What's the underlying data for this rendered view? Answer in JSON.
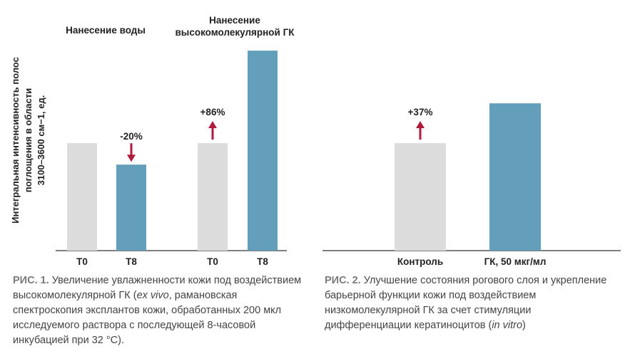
{
  "chart_data": [
    {
      "type": "bar",
      "ylabel": "Интегральная интенсивность полос поглощения в области 3100–3600 см−1, ед.",
      "ylabel_lines": [
        "Интегральная интенсивность полос",
        "поглощения в области",
        "3100–3600 см−1, ед."
      ],
      "groups": [
        {
          "title": "Нанесение воды",
          "title_lines": [
            "Нанесение воды"
          ],
          "categories": [
            "T0",
            "T8"
          ],
          "values": [
            100,
            80
          ],
          "change_label": "-20%",
          "change_direction": "down"
        },
        {
          "title": "Нанесение высокомолекулярной ГК",
          "title_lines": [
            "Нанесение",
            "высокомолекулярной ГК"
          ],
          "categories": [
            "T0",
            "T8"
          ],
          "values": [
            100,
            186
          ],
          "change_label": "+86%",
          "change_direction": "up"
        }
      ],
      "ylim": [
        0,
        200
      ],
      "grid": false
    },
    {
      "type": "bar",
      "categories": [
        "Контроль",
        "ГК, 50 мкг/мл"
      ],
      "values": [
        100,
        137
      ],
      "change_label": "+37%",
      "change_direction": "up",
      "ylim": [
        0,
        200
      ],
      "grid": false
    }
  ],
  "colors": {
    "baseline_bar": "#dcdcdc",
    "treatment_bar": "#639fba",
    "arrow": "#b01b3c",
    "axis": "#333333"
  },
  "captions": [
    {
      "label": "РИС. 1.",
      "text_before": "Увеличение увлажненности кожи под воздействием высокомолекулярной ГК (",
      "italic": "ex vivo",
      "text_after": ", рамановская спектроскопия эксплантов кожи, обработанных 200 мкл исследуемого раствора с последующей 8-часовой инкубацией при 32 °C)."
    },
    {
      "label": "РИС. 2.",
      "text_before": "Улучшение состояния рогового слоя и укрепление барьерной функции кожи под воздействием низкомолекулярной ГК за счет стимуляции дифференциации кератиноцитов (",
      "italic": "in vitro",
      "text_after": ")"
    }
  ]
}
